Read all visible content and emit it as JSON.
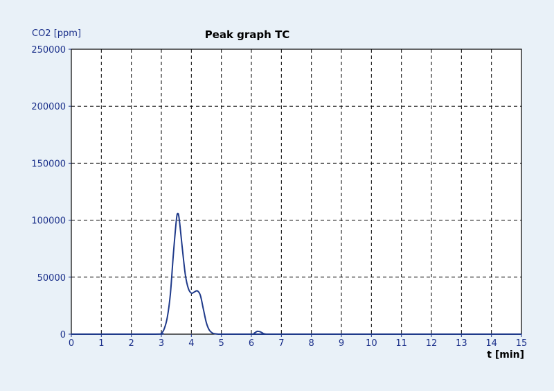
{
  "chart_data": {
    "type": "line",
    "title": "Peak graph TC",
    "xlabel": "t [min]",
    "ylabel": "CO2 [ppm]",
    "xlim": [
      0,
      15
    ],
    "ylim": [
      0,
      250000
    ],
    "xticks": [
      0,
      1,
      2,
      3,
      4,
      5,
      6,
      7,
      8,
      9,
      10,
      11,
      12,
      13,
      14,
      15
    ],
    "yticks": [
      0,
      50000,
      100000,
      150000,
      200000,
      250000
    ],
    "grid": true,
    "legend": "none",
    "series": [
      {
        "color": "#1f3a8a",
        "x": [
          0,
          2.8,
          3.0,
          3.1,
          3.2,
          3.3,
          3.4,
          3.5,
          3.55,
          3.6,
          3.7,
          3.8,
          3.9,
          4.0,
          4.1,
          4.2,
          4.3,
          4.4,
          4.5,
          4.6,
          4.7,
          4.8,
          4.9,
          5.0,
          6.0,
          6.1,
          6.2,
          6.3,
          6.4,
          6.5,
          6.6,
          15
        ],
        "y": [
          0,
          0,
          1000,
          5000,
          15000,
          35000,
          70000,
          100000,
          106000,
          100000,
          75000,
          52000,
          40000,
          36000,
          37000,
          38000,
          34000,
          22000,
          10000,
          3500,
          1000,
          300,
          0,
          0,
          0,
          1000,
          2500,
          2000,
          600,
          0,
          0,
          0
        ]
      }
    ]
  }
}
